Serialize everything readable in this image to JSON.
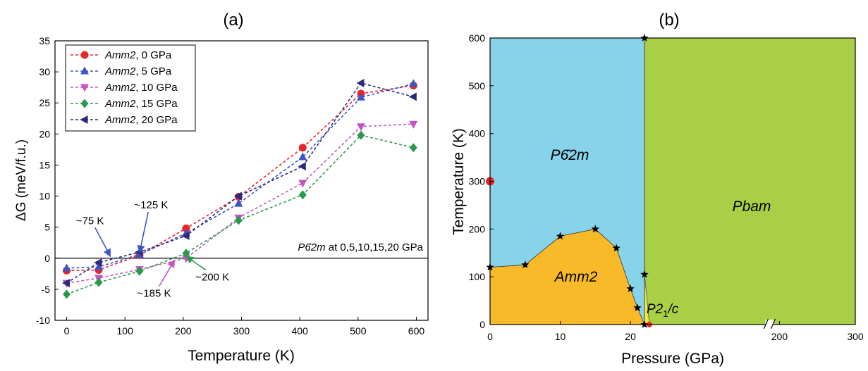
{
  "colors": {
    "red": "#e8262a",
    "blue": "#3a55c8",
    "magenta": "#c354c3",
    "green": "#2a9a4a",
    "navy": "#2a2a7a",
    "region_p62m": "#87d3ea",
    "region_pbam": "#a8cf45",
    "region_amm2": "#f9ba2a",
    "region_p21c": "#f2ea3a"
  },
  "chart_data": [
    {
      "type": "line",
      "panel_label": "(a)",
      "xlabel": "Temperature (K)",
      "ylabel": "ΔG (meV/f.u.)",
      "xlim": [
        -20,
        620
      ],
      "ylim": [
        -10,
        35
      ],
      "x_ticks": [
        "0",
        "100",
        "200",
        "300",
        "400",
        "500",
        "600"
      ],
      "y_ticks": [
        "-10",
        "-5",
        "0",
        "5",
        "10",
        "15",
        "20",
        "25",
        "30",
        "35"
      ],
      "legend_position": "top-left",
      "x": [
        0,
        55,
        125,
        205,
        295,
        405,
        505,
        595
      ],
      "series": [
        {
          "name_italic": "Amm2",
          "name_rest": ", 0 GPa",
          "marker": "circle",
          "color_key": "red",
          "values": [
            -2.0,
            -1.9,
            0.5,
            4.8,
            9.9,
            17.8,
            26.5,
            27.8
          ]
        },
        {
          "name_italic": "Amm2",
          "name_rest": ", 5 GPa",
          "marker": "triangle-up",
          "color_key": "blue",
          "values": [
            -1.6,
            -1.4,
            0.6,
            4.0,
            8.8,
            16.3,
            25.9,
            28.1
          ]
        },
        {
          "name_italic": "Amm2",
          "name_rest": ", 10 GPa",
          "marker": "triangle-down",
          "color_key": "magenta",
          "values": [
            -4.0,
            -3.2,
            -1.8,
            0.0,
            6.5,
            12.1,
            21.2,
            21.6
          ]
        },
        {
          "name_italic": "Amm2",
          "name_rest": ", 15 GPa",
          "marker": "diamond",
          "color_key": "green",
          "values": [
            -5.8,
            -3.9,
            -2.1,
            0.8,
            6.1,
            10.2,
            19.8,
            17.8
          ]
        },
        {
          "name_italic": "Amm2",
          "name_rest": ", 20 GPa",
          "marker": "triangle-left",
          "color_key": "navy",
          "values": [
            -4.0,
            -0.7,
            1.0,
            3.6,
            10.0,
            14.8,
            28.2,
            26.0
          ]
        }
      ],
      "reference_line": {
        "y": 0,
        "label_italic": "P6̄2m",
        "label_rest": " at 0,5,10,15,20 GPa"
      },
      "annotations": [
        {
          "text": "~75 K",
          "text_at": [
            40,
            5.5
          ],
          "arrow_to": [
            75,
            0.3
          ],
          "color_key": "blue"
        },
        {
          "text": "~125 K",
          "text_at": [
            145,
            8.0
          ],
          "arrow_to": [
            125,
            0.9
          ],
          "color_key": "blue"
        },
        {
          "text": "~185 K",
          "text_at": [
            150,
            -6.2
          ],
          "arrow_to": [
            185,
            -0.3
          ],
          "color_key": "magenta"
        },
        {
          "text": "~200 K",
          "text_at": [
            250,
            -3.6
          ],
          "arrow_to": [
            205,
            0.3
          ],
          "color_key": "green"
        }
      ]
    },
    {
      "type": "area",
      "panel_label": "(b)",
      "xlabel": "Pressure (GPa)",
      "ylabel": "Temperature (K)",
      "ylim": [
        0,
        600
      ],
      "x_axis_break": "broken axis: 0–22 GPa linear, then 22 GPa → 300 GPa",
      "x_ticks": [
        "0",
        "10",
        "20",
        "200",
        "300"
      ],
      "y_ticks": [
        "0",
        "100",
        "200",
        "300",
        "400",
        "500",
        "600"
      ],
      "regions": [
        {
          "label_italic": "P6̄2m",
          "label_rest": "",
          "color_key": "region_p62m"
        },
        {
          "label_italic": "Pbam",
          "label_rest": "",
          "color_key": "region_pbam"
        },
        {
          "label_italic": "Amm2",
          "label_rest": "",
          "color_key": "region_amm2"
        },
        {
          "label_italic": "P2",
          "label_sub": "1",
          "label_rest": "/c",
          "color_key": "region_p21c"
        }
      ],
      "amm2_boundary": [
        [
          0,
          120
        ],
        [
          5,
          125
        ],
        [
          10,
          185
        ],
        [
          15,
          200
        ],
        [
          18,
          160
        ],
        [
          20,
          75
        ],
        [
          21,
          35
        ],
        [
          22,
          0
        ]
      ],
      "vertical_boundary": {
        "pressure": 22,
        "from": 0,
        "to": 600
      },
      "p21c_region": [
        [
          22,
          0
        ],
        [
          22,
          105
        ],
        [
          28.5,
          0
        ]
      ],
      "red_points": [
        [
          0,
          300
        ],
        [
          28.5,
          0
        ]
      ],
      "star_points": [
        [
          0,
          120
        ],
        [
          5,
          125
        ],
        [
          10,
          185
        ],
        [
          15,
          200
        ],
        [
          18,
          160
        ],
        [
          20,
          75
        ],
        [
          21,
          35
        ],
        [
          22,
          0
        ],
        [
          22,
          105
        ],
        [
          22,
          600
        ]
      ]
    }
  ]
}
